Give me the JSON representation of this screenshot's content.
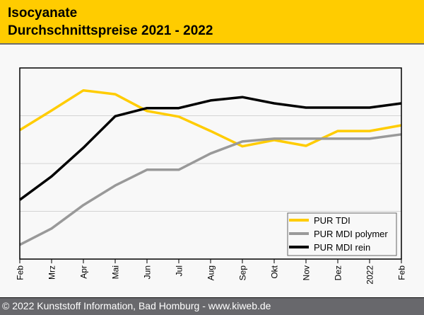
{
  "header": {
    "title_line1": "Isocyanate",
    "title_line2": "Durchschnittspreise 2021 - 2022"
  },
  "footer": {
    "text": "© 2022 Kunststoff Information, Bad Homburg - www.kiweb.de"
  },
  "colors": {
    "header_bg": "#ffcc00",
    "footer_bg": "#68686c",
    "grid": "#d3d3d3"
  },
  "chart_data": {
    "type": "line",
    "title": "Isocyanate Durchschnittspreise 2021 - 2022",
    "xlabel": "",
    "ylabel": "",
    "categories": [
      "Feb",
      "Mrz",
      "Apr",
      "Mai",
      "Jun",
      "Jul",
      "Aug",
      "Sep",
      "Okt",
      "Nov",
      "Dez",
      "2022",
      "Feb"
    ],
    "ylim": [
      0,
      4
    ],
    "y_gridlines": [
      1,
      2,
      3
    ],
    "y_tick_labels_shown": false,
    "grid": true,
    "legend_position": "bottom-right",
    "series": [
      {
        "name": "PUR TDI",
        "color": "#ffcc00",
        "values": [
          2.7,
          3.11,
          3.53,
          3.45,
          3.1,
          2.98,
          2.68,
          2.36,
          2.49,
          2.37,
          2.68,
          2.68,
          2.8
        ]
      },
      {
        "name": "PUR MDI polymer",
        "color": "#999999",
        "values": [
          0.3,
          0.64,
          1.13,
          1.54,
          1.87,
          1.87,
          2.21,
          2.46,
          2.52,
          2.52,
          2.52,
          2.52,
          2.61
        ]
      },
      {
        "name": "PUR MDI rein",
        "color": "#000000",
        "values": [
          1.24,
          1.73,
          2.33,
          2.99,
          3.16,
          3.16,
          3.32,
          3.39,
          3.26,
          3.17,
          3.17,
          3.17,
          3.26
        ]
      }
    ]
  }
}
